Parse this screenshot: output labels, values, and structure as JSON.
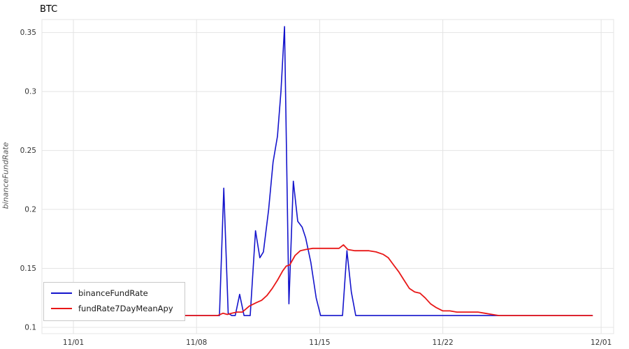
{
  "chart_data": {
    "type": "line",
    "title": "BTC",
    "xlabel": "",
    "ylabel": "binanceFundRate",
    "grid": true,
    "legend_position": "bottom-left",
    "colors": {
      "grid": "#e4e4e4",
      "tick_text": "#333333",
      "plot_border": "#e4e4e4"
    },
    "x_axis": {
      "domain": [
        -0.79,
        31.71
      ],
      "ticks": [
        {
          "label": "11/01",
          "day": 1
        },
        {
          "label": "11/08",
          "day": 8
        },
        {
          "label": "11/15",
          "day": 15
        },
        {
          "label": "11/22",
          "day": 22
        },
        {
          "label": "12/01",
          "day": 31
        }
      ]
    },
    "y_axis": {
      "domain": [
        0.0947,
        0.361
      ],
      "ticks": [
        {
          "label": "0.1",
          "value": 0.1
        },
        {
          "label": "0.15",
          "value": 0.15
        },
        {
          "label": "0.2",
          "value": 0.2
        },
        {
          "label": "0.25",
          "value": 0.25
        },
        {
          "label": "0.3",
          "value": 0.3
        },
        {
          "label": "0.35",
          "value": 0.35
        }
      ]
    },
    "series": [
      {
        "name": "binanceFundRate",
        "color": "#1414cc",
        "width": 1.6,
        "points": [
          [
            6.0,
            0.11
          ],
          [
            6.5,
            0.11
          ],
          [
            7.0,
            0.11
          ],
          [
            7.5,
            0.11
          ],
          [
            8.0,
            0.11
          ],
          [
            8.5,
            0.11
          ],
          [
            9.0,
            0.11
          ],
          [
            9.3,
            0.11
          ],
          [
            9.55,
            0.218
          ],
          [
            9.8,
            0.112
          ],
          [
            10.0,
            0.11
          ],
          [
            10.2,
            0.11
          ],
          [
            10.45,
            0.128
          ],
          [
            10.7,
            0.11
          ],
          [
            10.95,
            0.11
          ],
          [
            11.05,
            0.11
          ],
          [
            11.35,
            0.182
          ],
          [
            11.6,
            0.159
          ],
          [
            11.8,
            0.164
          ],
          [
            12.1,
            0.2
          ],
          [
            12.35,
            0.24
          ],
          [
            12.6,
            0.262
          ],
          [
            12.8,
            0.3
          ],
          [
            13.0,
            0.355
          ],
          [
            13.25,
            0.12
          ],
          [
            13.5,
            0.224
          ],
          [
            13.75,
            0.19
          ],
          [
            14.0,
            0.185
          ],
          [
            14.2,
            0.176
          ],
          [
            14.5,
            0.155
          ],
          [
            14.8,
            0.125
          ],
          [
            15.05,
            0.11
          ],
          [
            15.5,
            0.11
          ],
          [
            16.0,
            0.11
          ],
          [
            16.3,
            0.11
          ],
          [
            16.55,
            0.165
          ],
          [
            16.8,
            0.13
          ],
          [
            17.05,
            0.11
          ],
          [
            18,
            0.11
          ],
          [
            19,
            0.11
          ],
          [
            20,
            0.11
          ],
          [
            21,
            0.11
          ],
          [
            22,
            0.11
          ],
          [
            23,
            0.11
          ],
          [
            24,
            0.11
          ],
          [
            25,
            0.11
          ],
          [
            26,
            0.11
          ],
          [
            27,
            0.11
          ],
          [
            28,
            0.11
          ],
          [
            29,
            0.11
          ],
          [
            30,
            0.11
          ],
          [
            30.5,
            0.11
          ]
        ]
      },
      {
        "name": "fundRate7DayMeanApy",
        "color": "#e81717",
        "width": 1.8,
        "points": [
          [
            6.9,
            0.11
          ],
          [
            7.5,
            0.11
          ],
          [
            8.0,
            0.11
          ],
          [
            8.5,
            0.11
          ],
          [
            9.0,
            0.11
          ],
          [
            9.2,
            0.11
          ],
          [
            9.5,
            0.112
          ],
          [
            9.75,
            0.111
          ],
          [
            10.0,
            0.112
          ],
          [
            10.3,
            0.113
          ],
          [
            10.6,
            0.113
          ],
          [
            11.0,
            0.118
          ],
          [
            11.4,
            0.121
          ],
          [
            11.7,
            0.123
          ],
          [
            12.0,
            0.127
          ],
          [
            12.3,
            0.133
          ],
          [
            12.6,
            0.14
          ],
          [
            12.9,
            0.148
          ],
          [
            13.1,
            0.152
          ],
          [
            13.3,
            0.153
          ],
          [
            13.6,
            0.161
          ],
          [
            13.9,
            0.165
          ],
          [
            14.2,
            0.166
          ],
          [
            14.6,
            0.167
          ],
          [
            15.0,
            0.167
          ],
          [
            15.4,
            0.167
          ],
          [
            15.8,
            0.167
          ],
          [
            16.1,
            0.167
          ],
          [
            16.35,
            0.17
          ],
          [
            16.6,
            0.166
          ],
          [
            17.0,
            0.165
          ],
          [
            17.4,
            0.165
          ],
          [
            17.8,
            0.165
          ],
          [
            18.2,
            0.164
          ],
          [
            18.6,
            0.162
          ],
          [
            18.9,
            0.159
          ],
          [
            19.2,
            0.153
          ],
          [
            19.5,
            0.147
          ],
          [
            19.8,
            0.14
          ],
          [
            20.1,
            0.133
          ],
          [
            20.4,
            0.13
          ],
          [
            20.7,
            0.129
          ],
          [
            21.0,
            0.125
          ],
          [
            21.3,
            0.12
          ],
          [
            21.6,
            0.117
          ],
          [
            22.0,
            0.114
          ],
          [
            22.4,
            0.114
          ],
          [
            22.8,
            0.113
          ],
          [
            23.2,
            0.113
          ],
          [
            23.6,
            0.113
          ],
          [
            24.0,
            0.113
          ],
          [
            24.4,
            0.112
          ],
          [
            24.8,
            0.111
          ],
          [
            25.2,
            0.11
          ],
          [
            26,
            0.11
          ],
          [
            27,
            0.11
          ],
          [
            28,
            0.11
          ],
          [
            29,
            0.11
          ],
          [
            30,
            0.11
          ],
          [
            30.5,
            0.11
          ]
        ]
      }
    ]
  },
  "legend": {
    "items": [
      {
        "label": "binanceFundRate"
      },
      {
        "label": "fundRate7DayMeanApy"
      }
    ]
  }
}
